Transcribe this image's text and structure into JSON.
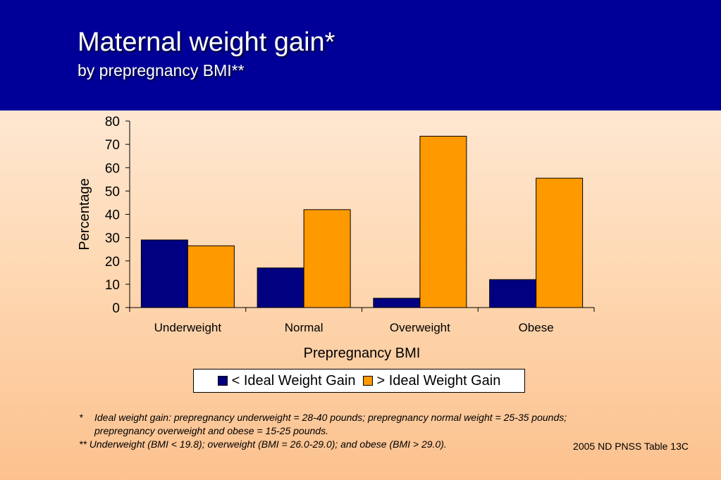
{
  "slide": {
    "title": "Maternal weight gain*",
    "subtitle": "by prepregnancy BMI**"
  },
  "chart_data": {
    "type": "bar",
    "categories": [
      "Underweight",
      "Normal",
      "Overweight",
      "Obese"
    ],
    "series": [
      {
        "name": "< Ideal Weight Gain",
        "color": "#000080",
        "values": [
          29,
          17,
          4,
          12
        ]
      },
      {
        "name": "> Ideal Weight Gain",
        "color": "#ff9900",
        "values": [
          26.5,
          42,
          73.5,
          55.5
        ]
      }
    ],
    "xlabel": "Prepregnancy BMI",
    "ylabel": "Percentage",
    "ylim": [
      0,
      80
    ],
    "yticks": [
      "0",
      "10",
      "20",
      "30",
      "40",
      "50",
      "60",
      "70",
      "80"
    ],
    "legend_position": "bottom",
    "grid": false
  },
  "footnotes": {
    "fn1_mark": "*",
    "fn1_text": "Ideal weight gain: prepregnancy underweight = 28-40 pounds; prepregnancy normal weight = 25-35 pounds; prepregnancy overweight and obese = 15-25 pounds.",
    "fn2_text": "**  Underweight (BMI < 19.8); overweight (BMI = 26.0-29.0); and obese (BMI > 29.0)."
  },
  "source": "2005 ND PNSS Table 13C"
}
